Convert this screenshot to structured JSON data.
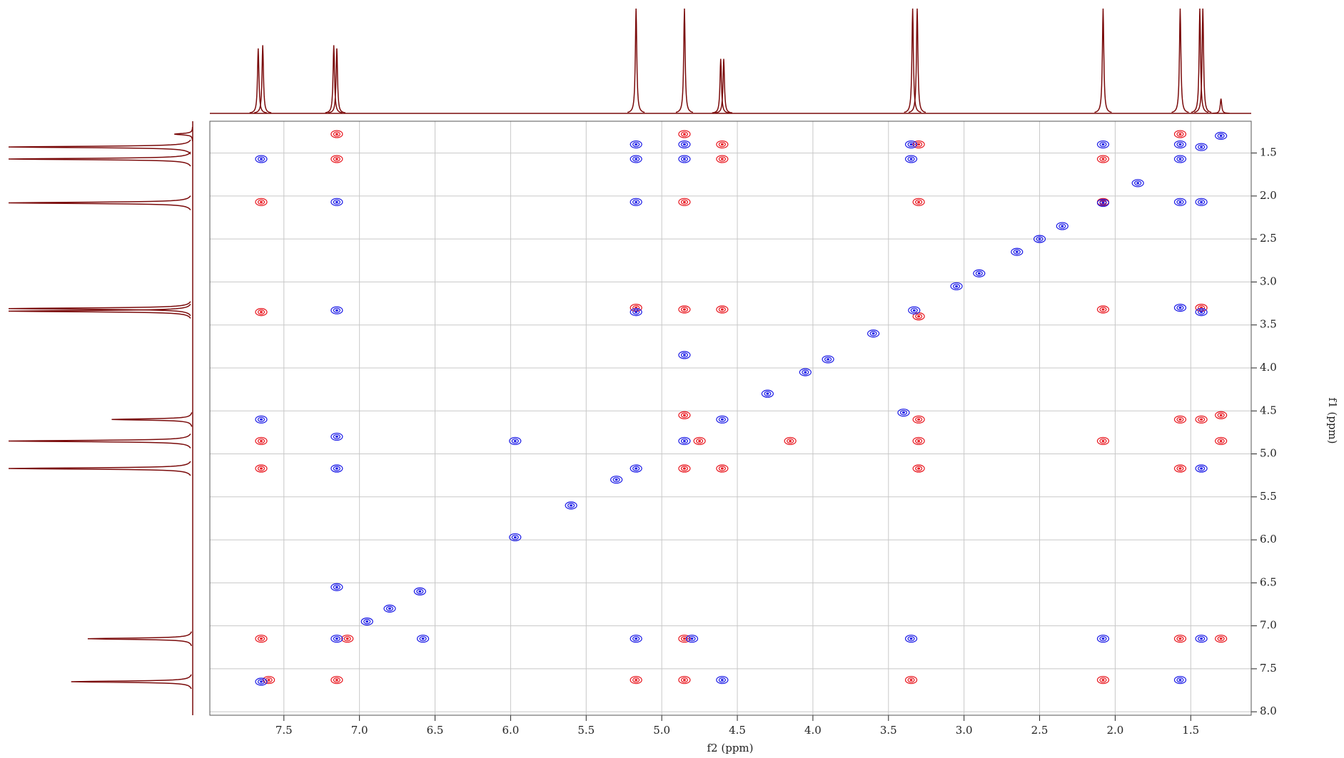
{
  "chart_data": {
    "type": "nmr-2d",
    "xlabel": "f2 (ppm)",
    "ylabel": "f1 (ppm)",
    "xlim": [
      7.99,
      1.1
    ],
    "ylim": [
      1.13,
      8.04
    ],
    "xticks": [
      7.5,
      {
        "value": 7,
        "label": "7.0"
      },
      6.5,
      {
        "value": 6,
        "label": "6.0"
      },
      5.5,
      {
        "value": 5,
        "label": "5.0"
      },
      4.5,
      {
        "value": 4,
        "label": "4.0"
      },
      3.5,
      {
        "value": 3,
        "label": "3.0"
      },
      2.5,
      {
        "value": 2,
        "label": "2.0"
      },
      1.5
    ],
    "yticks": [
      1.5,
      {
        "value": 2,
        "label": "2.0"
      },
      2.5,
      {
        "value": 3,
        "label": "3.0"
      },
      3.5,
      {
        "value": 4,
        "label": "4.0"
      },
      4.5,
      {
        "value": 5,
        "label": "5.0"
      },
      5.5,
      {
        "value": 6,
        "label": "6.0"
      },
      6.5,
      {
        "value": 7,
        "label": "7.0"
      },
      7.5,
      {
        "value": 8,
        "label": "8.0"
      }
    ],
    "grid": true,
    "series": [
      {
        "color": "#e8141c",
        "x": [
          7.15,
          7.15,
          4.85,
          4.6,
          4.6,
          3.3,
          2.08,
          1.57,
          7.65,
          4.85,
          3.3,
          2.08,
          7.65,
          5.17,
          4.85,
          4.6,
          2.08,
          1.43,
          3.3,
          4.85,
          3.3,
          1.57,
          1.43,
          1.3,
          7.65,
          3.3,
          2.08,
          1.3,
          7.65,
          4.85,
          4.6,
          3.3,
          1.57,
          7.65,
          4.85,
          1.57,
          1.3,
          7.15,
          5.17,
          4.85,
          3.35,
          2.08,
          7.08,
          7.6,
          4.75,
          4.15
        ],
        "values": [
          1.28,
          1.57,
          1.28,
          1.4,
          1.57,
          1.4,
          1.57,
          1.28,
          2.07,
          2.07,
          2.07,
          2.07,
          3.35,
          3.3,
          3.32,
          3.32,
          3.32,
          3.3,
          3.4,
          4.55,
          4.6,
          4.6,
          4.6,
          4.55,
          4.85,
          4.85,
          4.85,
          4.85,
          5.17,
          5.17,
          5.17,
          5.17,
          5.17,
          7.15,
          7.15,
          7.15,
          7.15,
          7.63,
          7.63,
          7.63,
          7.63,
          7.63,
          7.15,
          7.63,
          4.85,
          4.85
        ]
      },
      {
        "color": "#1a1ae6",
        "x": [
          7.65,
          5.17,
          5.17,
          4.85,
          4.85,
          3.35,
          3.35,
          2.08,
          1.57,
          7.15,
          5.17,
          1.57,
          1.43,
          7.15,
          5.17,
          1.57,
          1.43,
          7.65,
          7.15,
          3.4,
          7.15,
          1.43,
          5.97,
          7.15,
          6.58,
          5.17,
          4.8,
          3.35,
          2.08,
          1.43,
          1.57,
          4.6,
          7.65,
          7.15,
          6.95,
          6.8,
          6.6,
          5.97,
          5.6,
          5.17,
          4.85,
          4.6,
          4.3,
          4.05,
          3.9,
          3.6,
          3.33,
          3.05,
          2.9,
          2.65,
          2.5,
          2.35,
          2.08,
          1.85,
          1.57,
          1.43,
          1.3,
          5.3,
          4.85
        ],
        "values": [
          1.57,
          1.4,
          1.57,
          1.4,
          1.57,
          1.4,
          1.57,
          1.4,
          1.4,
          2.07,
          2.07,
          2.07,
          2.07,
          3.33,
          3.35,
          3.3,
          3.35,
          4.6,
          4.8,
          4.52,
          5.17,
          5.17,
          4.85,
          6.55,
          7.15,
          7.15,
          7.15,
          7.15,
          7.15,
          7.15,
          7.63,
          7.63,
          7.65,
          7.15,
          6.95,
          6.8,
          6.6,
          5.97,
          5.6,
          5.17,
          4.85,
          4.6,
          4.3,
          4.05,
          3.9,
          3.6,
          3.33,
          3.05,
          2.9,
          2.65,
          2.5,
          2.35,
          2.08,
          1.85,
          1.57,
          1.43,
          1.3,
          5.3,
          3.85
        ]
      }
    ],
    "top_trace": {
      "color": "#7a0a0a",
      "x": [
        7.67,
        7.64,
        7.17,
        7.15,
        5.17,
        4.85,
        4.61,
        4.59,
        3.34,
        3.31,
        2.08,
        1.57,
        1.44,
        1.42,
        1.3
      ],
      "values": [
        62,
        65,
        65,
        62,
        100,
        100,
        52,
        52,
        100,
        100,
        100,
        100,
        100,
        100,
        14
      ]
    },
    "left_trace": {
      "color": "#7a0a0a",
      "y": [
        1.28,
        1.43,
        1.57,
        2.08,
        3.31,
        3.34,
        4.6,
        4.85,
        5.17,
        7.15,
        7.65
      ],
      "values": [
        10,
        100,
        100,
        100,
        100,
        100,
        44,
        100,
        100,
        57,
        66
      ]
    }
  }
}
